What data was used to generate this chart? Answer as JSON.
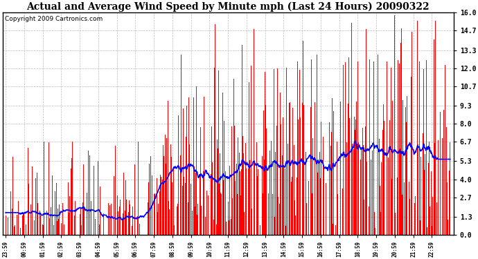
{
  "title": "Actual and Average Wind Speed by Minute mph (Last 24 Hours) 20090322",
  "copyright": "Copyright 2009 Cartronics.com",
  "yticks": [
    0.0,
    1.3,
    2.7,
    4.0,
    5.3,
    6.7,
    8.0,
    9.3,
    10.7,
    12.0,
    13.3,
    14.7,
    16.0
  ],
  "ylim": [
    0.0,
    16.0
  ],
  "bar_color": "#FF0000",
  "line_color": "#0000FF",
  "bg_color": "#FFFFFF",
  "plot_bg_color": "#FFFFFF",
  "grid_color": "#BBBBBB",
  "title_fontsize": 10,
  "copyright_fontsize": 6.5,
  "n_points": 1440
}
